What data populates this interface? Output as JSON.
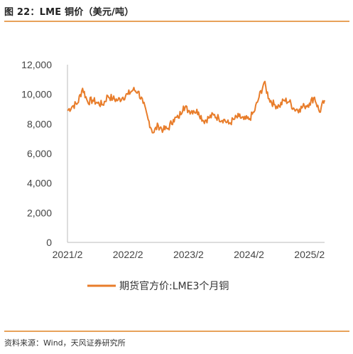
{
  "figure_title": "图 22：LME 铜价（美元/吨）",
  "source": "资料来源：Wind，天风证券研究所",
  "colors": {
    "series": "#e87d2b",
    "axis": "#bbbbbb",
    "rule": "#e8a25a"
  },
  "chart_data": {
    "type": "line",
    "title": "",
    "xlabel": "",
    "ylabel": "",
    "ylim": [
      0,
      12000
    ],
    "yticks": [
      0,
      2000,
      4000,
      6000,
      8000,
      10000,
      12000
    ],
    "ytick_labels": [
      "0",
      "2,000",
      "4,000",
      "6,000",
      "8,000",
      "10,000",
      "12,000"
    ],
    "xlim": [
      "2021-02",
      "2025-05"
    ],
    "xticks": [
      "2021-02",
      "2022-02",
      "2023-02",
      "2024-02",
      "2025-02"
    ],
    "xtick_labels": [
      "2021/2",
      "2022/2",
      "2023/2",
      "2024/2",
      "2025/2"
    ],
    "grid": false,
    "legend": "bottom",
    "series": [
      {
        "name": "期货官方价:LME3个月铜",
        "x": [
          "2021-02",
          "2021-03",
          "2021-04",
          "2021-05",
          "2021-06",
          "2021-07",
          "2021-08",
          "2021-09",
          "2021-10",
          "2021-11",
          "2021-12",
          "2022-01",
          "2022-02",
          "2022-03",
          "2022-04",
          "2022-05",
          "2022-06",
          "2022-07",
          "2022-08",
          "2022-09",
          "2022-10",
          "2022-11",
          "2022-12",
          "2023-01",
          "2023-02",
          "2023-03",
          "2023-04",
          "2023-05",
          "2023-06",
          "2023-07",
          "2023-08",
          "2023-09",
          "2023-10",
          "2023-11",
          "2023-12",
          "2024-01",
          "2024-02",
          "2024-03",
          "2024-04",
          "2024-05",
          "2024-06",
          "2024-07",
          "2024-08",
          "2024-09",
          "2024-10",
          "2024-11",
          "2024-12",
          "2025-01",
          "2025-02",
          "2025-03",
          "2025-04",
          "2025-05"
        ],
        "values": [
          8900,
          9200,
          9400,
          10400,
          9500,
          9600,
          9400,
          9300,
          9900,
          9700,
          9600,
          9800,
          10000,
          10300,
          10200,
          9400,
          8300,
          7400,
          7900,
          7600,
          7700,
          8300,
          8400,
          9200,
          8900,
          8900,
          8800,
          8200,
          8400,
          8600,
          8400,
          8300,
          8000,
          8300,
          8500,
          8300,
          8300,
          8800,
          9800,
          10800,
          9700,
          9300,
          9200,
          9600,
          9500,
          9000,
          9000,
          9200,
          9400,
          9800,
          8800,
          9600
        ]
      }
    ]
  }
}
